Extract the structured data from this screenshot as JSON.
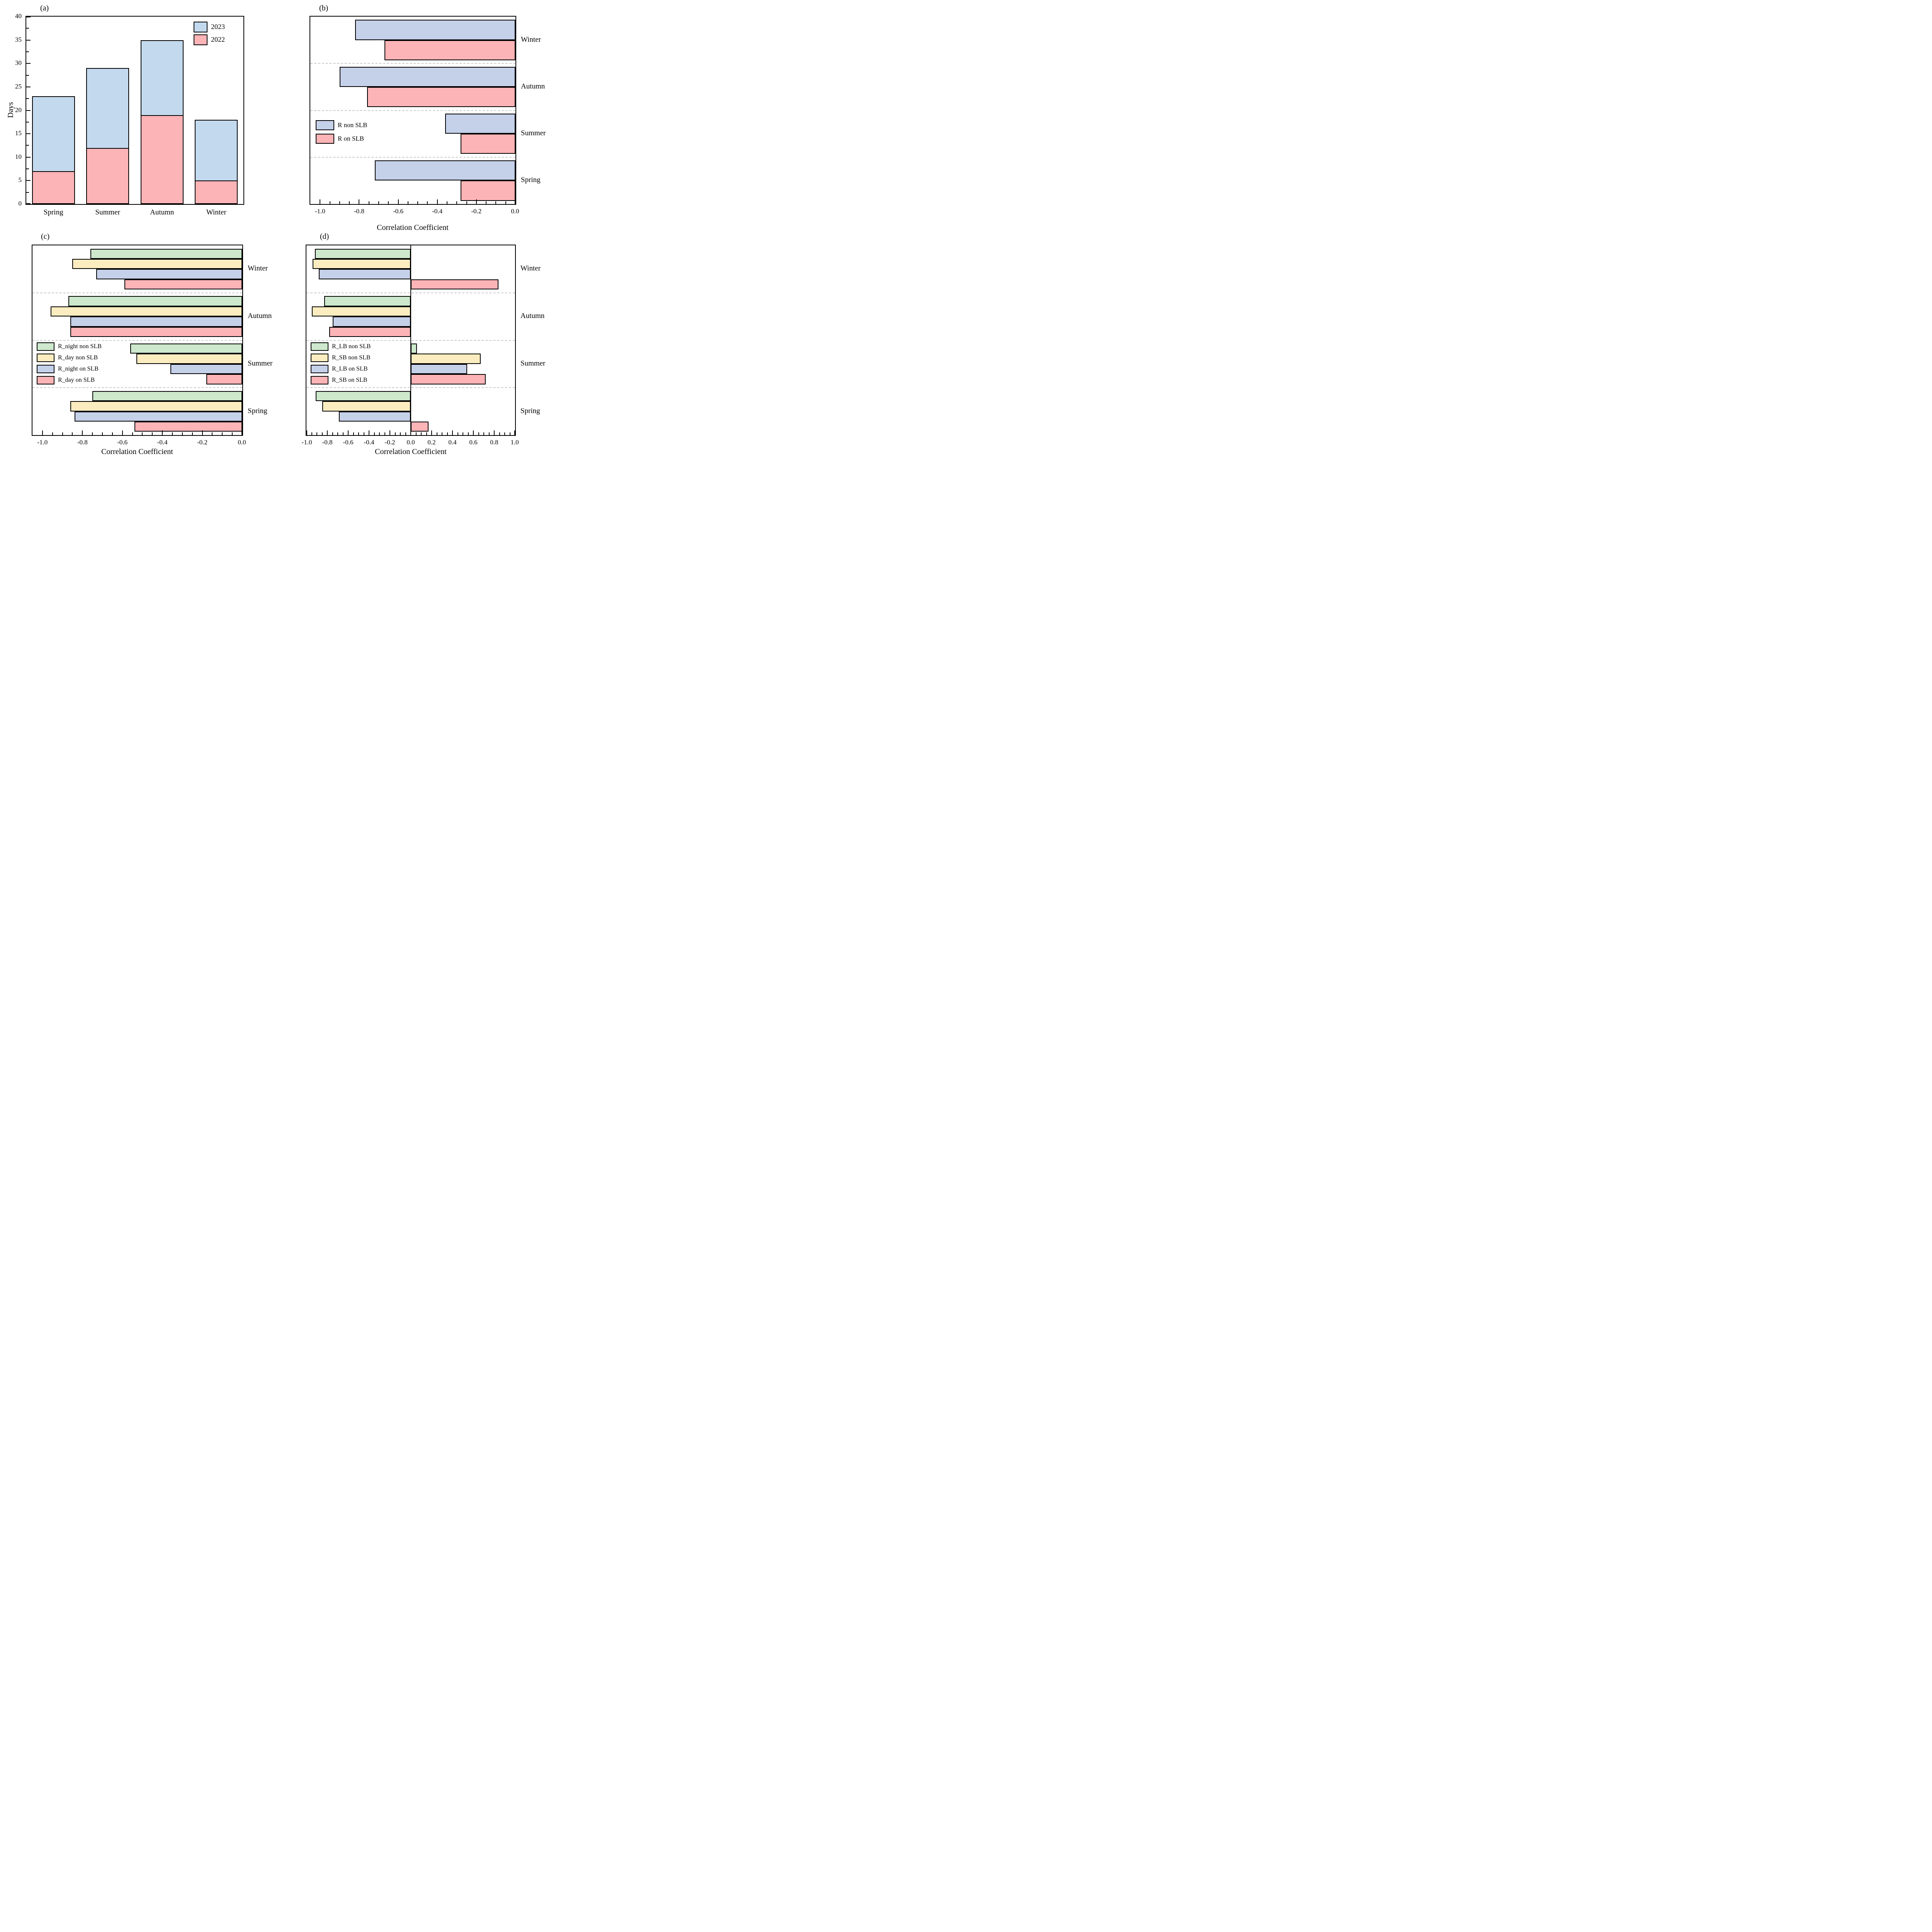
{
  "colors": {
    "blue_2023": "#C3D9ED",
    "lavender_on_slb": "#C5D0E9",
    "pink": "#FDB4B7",
    "green": "#CDE8CC",
    "yellow": "#FBEDC0",
    "axis": "#000000",
    "separator_dash": "#c9c9c9"
  },
  "chart_data": [
    {
      "panel_label": "(a)",
      "type": "bar",
      "stacked": true,
      "ylabel": "Days",
      "categories": [
        "Spring",
        "Summer",
        "Autumn",
        "Winter"
      ],
      "series": [
        {
          "name": "2023",
          "color": "#C3D9ED",
          "segment_values": [
            16,
            17,
            16,
            13
          ]
        },
        {
          "name": "2022",
          "color": "#FDB4B7",
          "segment_values": [
            7,
            12,
            19,
            5
          ]
        }
      ],
      "stack_totals": [
        23,
        29,
        35,
        18
      ],
      "ylim": [
        0,
        40
      ],
      "yticks": [
        0,
        5,
        10,
        15,
        20,
        25,
        30,
        35,
        40
      ],
      "ytick_labels": [
        "0",
        "5",
        "10",
        "15",
        "20",
        "25",
        "30",
        "35",
        "40"
      ],
      "y_minor_step": 2.5,
      "legend_position": "top-right",
      "legend": [
        "2023",
        "2022"
      ]
    },
    {
      "panel_label": "(b)",
      "type": "bar",
      "orientation": "horizontal",
      "xlabel": "Correlation Coefficient",
      "categories_top_to_bottom": [
        "Winter",
        "Autumn",
        "Summer",
        "Spring"
      ],
      "series": [
        {
          "name": "R non SLB",
          "color": "#C5D0E9",
          "values": [
            -0.82,
            -0.9,
            -0.36,
            -0.72
          ]
        },
        {
          "name": "R on SLB",
          "color": "#FDB4B7",
          "values": [
            -0.67,
            -0.76,
            -0.28,
            -0.28
          ]
        }
      ],
      "xlim": [
        -1.05,
        0
      ],
      "xticks": [
        -1.0,
        -0.8,
        -0.6,
        -0.4,
        -0.2,
        0.0
      ],
      "xtick_labels": [
        "-1.0",
        "-0.8",
        "-0.6",
        "-0.4",
        "-0.2",
        "0.0"
      ],
      "x_minor_step": 0.05,
      "legend_position": "middle-left",
      "legend": [
        "R non SLB",
        "R on SLB"
      ],
      "group_separators": "dashed"
    },
    {
      "panel_label": "(c)",
      "type": "bar",
      "orientation": "horizontal",
      "xlabel": "Correlation Coefficient",
      "categories_top_to_bottom": [
        "Winter",
        "Autumn",
        "Summer",
        "Spring"
      ],
      "series": [
        {
          "name": "R_night non SLB",
          "color": "#CDE8CC",
          "values": [
            -0.76,
            -0.87,
            -0.56,
            -0.75
          ]
        },
        {
          "name": "R_day non SLB",
          "color": "#FBEDC0",
          "values": [
            -0.85,
            -0.96,
            -0.53,
            -0.86
          ]
        },
        {
          "name": "R_night on SLB",
          "color": "#C5D0E9",
          "values": [
            -0.73,
            -0.86,
            -0.36,
            -0.84
          ]
        },
        {
          "name": "R_day on SLB",
          "color": "#FDB4B7",
          "values": [
            -0.59,
            -0.86,
            -0.18,
            -0.54
          ]
        }
      ],
      "xlim": [
        -1.05,
        0
      ],
      "xticks": [
        -1.0,
        -0.8,
        -0.6,
        -0.4,
        -0.2,
        0.0
      ],
      "xtick_labels": [
        "-1.0",
        "-0.8",
        "-0.6",
        "-0.4",
        "-0.2",
        "0.0"
      ],
      "x_minor_step": 0.05,
      "legend_position": "middle-left",
      "legend": [
        "R_night non SLB",
        "R_day non SLB",
        "R_night on SLB",
        "R_day on SLB"
      ],
      "group_separators": "dashed"
    },
    {
      "panel_label": "(d)",
      "type": "bar",
      "orientation": "horizontal",
      "xlabel": "Correlation Coefficient",
      "categories_top_to_bottom": [
        "Winter",
        "Autumn",
        "Summer",
        "Spring"
      ],
      "series": [
        {
          "name": "R_LB non SLB",
          "color": "#CDE8CC",
          "values": [
            -0.92,
            -0.83,
            0.06,
            -0.91
          ]
        },
        {
          "name": "R_SB non SLB",
          "color": "#FBEDC0",
          "values": [
            -0.94,
            -0.95,
            0.67,
            -0.85
          ]
        },
        {
          "name": "R_LB on SLB",
          "color": "#C5D0E9",
          "values": [
            -0.88,
            -0.75,
            0.54,
            -0.69
          ]
        },
        {
          "name": "R_SB on SLB",
          "color": "#FDB4B7",
          "values": [
            0.84,
            -0.78,
            0.72,
            0.17
          ]
        }
      ],
      "xlim": [
        -1.0,
        1.0
      ],
      "xticks": [
        -1.0,
        -0.8,
        -0.6,
        -0.4,
        -0.2,
        0.0,
        0.2,
        0.4,
        0.6,
        0.8,
        1.0
      ],
      "xtick_labels": [
        "-1.0",
        "-0.8",
        "-0.6",
        "-0.4",
        "-0.2",
        "0.0",
        "0.2",
        "0.4",
        "0.6",
        "0.8",
        "1.0"
      ],
      "x_minor_step": 0.05,
      "zero_line": true,
      "legend_position": "middle-left",
      "legend": [
        "R_LB non SLB",
        "R_SB non SLB",
        "R_LB on SLB",
        "R_SB on SLB"
      ],
      "group_separators": "dashed"
    }
  ]
}
